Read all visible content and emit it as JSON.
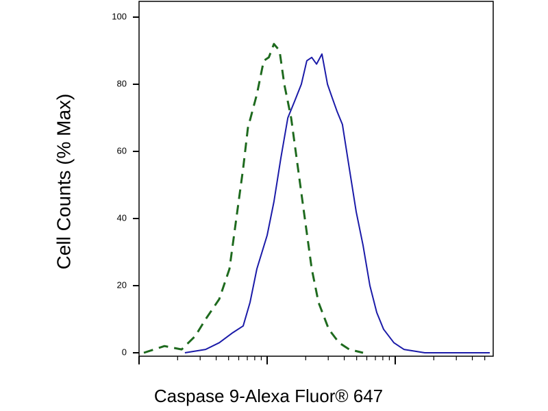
{
  "chart_data": {
    "type": "line",
    "y_label": "Cell Counts (% Max)",
    "x_label": "Caspase 9-Alexa Fluor® 647",
    "x_log": true,
    "xlim": [
      1,
      582
    ],
    "xticks": [
      1,
      2,
      3,
      4,
      5,
      6,
      7,
      8,
      9,
      10,
      20,
      30,
      40,
      50,
      60,
      70,
      80,
      90,
      100,
      200,
      300,
      400,
      500
    ],
    "ylim": [
      0,
      100
    ],
    "yticks": [
      0,
      20,
      40,
      60,
      80,
      100
    ],
    "series": [
      {
        "color": "#1e6a1e",
        "dashed": true,
        "x": [
          1.09,
          1.58,
          2.15,
          2.75,
          3.31,
          4.23,
          5.08,
          5.75,
          6.5,
          7.08,
          8.32,
          9.4,
          10.3,
          11.3,
          12.5,
          13.6,
          15.4,
          17.4,
          19.7,
          22.3,
          25.2,
          30.3,
          36.4,
          43.8,
          56.1
        ],
        "values": [
          0,
          2,
          1,
          5,
          10,
          16,
          25,
          40,
          55,
          67,
          77,
          87,
          88,
          92,
          90,
          80,
          70,
          55,
          40,
          25,
          15,
          7,
          3,
          1,
          0
        ]
      },
      {
        "color": "#1a1aa8",
        "dashed": false,
        "x": [
          2.28,
          3.31,
          4.23,
          5.4,
          6.5,
          7.35,
          8.32,
          10.0,
          11.3,
          12.8,
          14.5,
          16.4,
          18.5,
          20.4,
          22.3,
          24.3,
          26.8,
          29.6,
          32.2,
          35.1,
          38.7,
          43.8,
          49.6,
          56.1,
          63.4,
          71.7,
          81.1,
          97.6,
          117,
          170,
          547
        ],
        "values": [
          0,
          1,
          3,
          6,
          8,
          15,
          25,
          35,
          45,
          58,
          70,
          75,
          80,
          87,
          88,
          86,
          89,
          80,
          76,
          72,
          68,
          55,
          42,
          32,
          20,
          12,
          7,
          3,
          1,
          0,
          0
        ]
      }
    ]
  }
}
